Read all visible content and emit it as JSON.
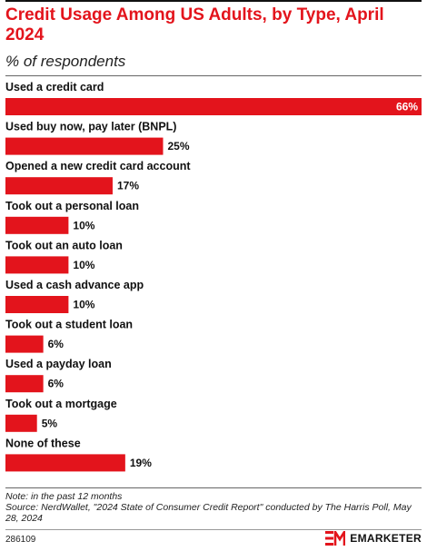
{
  "header": {
    "title": "Credit Usage Among US Adults, by Type, April 2024",
    "subtitle": "% of respondents"
  },
  "chart_data": {
    "type": "bar",
    "orientation": "horizontal",
    "title": "Credit Usage Among US Adults, by Type, April 2024",
    "subtitle": "% of respondents",
    "categories": [
      "Used a credit card",
      "Used buy now, pay later (BNPL)",
      "Opened a new credit card account",
      "Took out a personal loan",
      "Took out an auto loan",
      "Used a cash advance app",
      "Took out a student loan",
      "Used a payday loan",
      "Took out a mortgage",
      "None of these"
    ],
    "values": [
      66,
      25,
      17,
      10,
      10,
      10,
      6,
      6,
      5,
      19
    ],
    "value_labels": [
      "66%",
      "25%",
      "17%",
      "10%",
      "10%",
      "10%",
      "6%",
      "6%",
      "5%",
      "19%"
    ],
    "bar_color": "#e3141c",
    "xlim": [
      0,
      66
    ],
    "grid": false,
    "legend": "none"
  },
  "footer": {
    "note": "Note: in the past 12 months",
    "source": "Source: NerdWallet, \"2024 State of Consumer Credit Report\" conducted by The Harris Poll, May 28, 2024",
    "chart_id": "286109",
    "brand": "EMARKETER",
    "brand_color": "#e3141c"
  }
}
